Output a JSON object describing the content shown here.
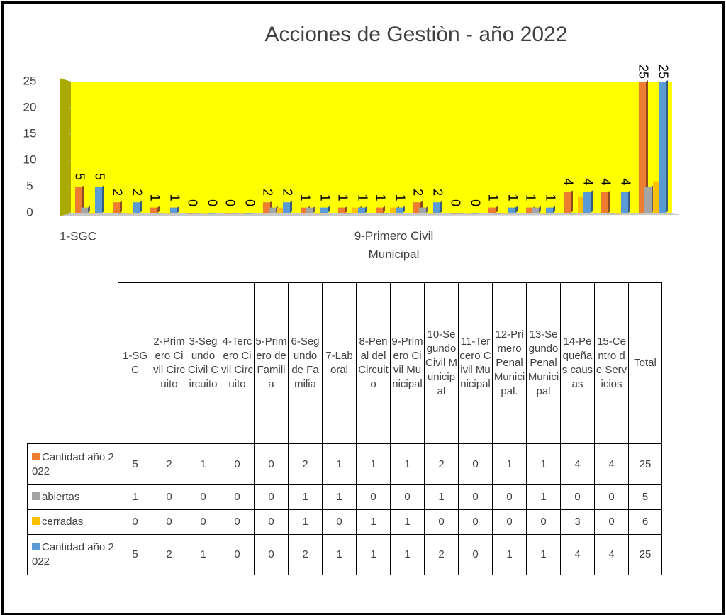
{
  "chart_data": {
    "type": "bar3d",
    "title": "Acciones de Gestiòn - año  2022",
    "categories": [
      "1-SGC",
      "2-Primero Civil Circuito",
      "3-Segundo Civil Circuito",
      "4-Tercero Civil Circuito",
      "5-Primero de Familia",
      "6-Segundo de Familia",
      "7-Laboral",
      "8-Penal del Circuito",
      "9-Primero Civil Municipal",
      "10-Segundo Civil Municipal",
      "11-Tercero Civil Municipal",
      "12-Primero Penal Municipal.",
      "13-Segundo Penal Municipal",
      "14-Pequeñas causas",
      "15-Centro de Servicios",
      "Total"
    ],
    "series": [
      {
        "name": "Cantidad año 2022",
        "color": "#ed7d31",
        "values": [
          5,
          2,
          1,
          0,
          0,
          2,
          1,
          1,
          1,
          2,
          0,
          1,
          1,
          4,
          4,
          25
        ]
      },
      {
        "name": "abiertas",
        "color": "#a5a5a5",
        "values": [
          1,
          0,
          0,
          0,
          0,
          1,
          1,
          0,
          0,
          1,
          0,
          0,
          1,
          0,
          0,
          5
        ]
      },
      {
        "name": "cerradas",
        "color": "#ffc000",
        "values": [
          0,
          0,
          0,
          0,
          0,
          1,
          0,
          1,
          1,
          0,
          0,
          0,
          0,
          3,
          0,
          6
        ]
      },
      {
        "name": "Cantidad año 2022",
        "color": "#5b9bd5",
        "values": [
          5,
          2,
          1,
          0,
          0,
          2,
          1,
          1,
          1,
          2,
          0,
          1,
          1,
          4,
          4,
          25
        ]
      }
    ],
    "ylim": [
      0,
      25
    ],
    "yticks": [
      0,
      5,
      10,
      15,
      20,
      25
    ],
    "plot_color": "#ffff00"
  }
}
